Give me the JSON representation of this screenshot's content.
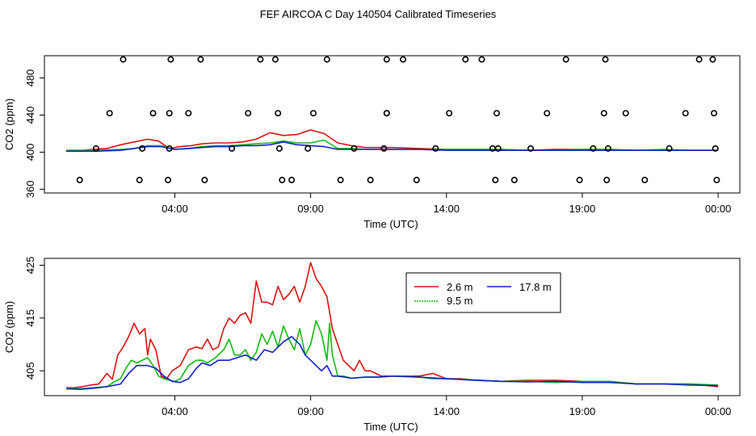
{
  "chart_data": {
    "title": "FEF AIRCOA C  Day 140504  Calibrated Timeseries",
    "colors": {
      "red": "#dd1111",
      "green": "#11bb11",
      "blue": "#1122cc",
      "qc": "#000000"
    },
    "panels": [
      {
        "type": "line",
        "name": "top",
        "xlabel": "Time (UTC)",
        "ylabel": "CO2 (ppm)",
        "xlim": [
          -0.8,
          24.8
        ],
        "ylim": [
          356,
          504
        ],
        "xticks": [
          4,
          9,
          14,
          19,
          24
        ],
        "xtick_labels": [
          "04:00",
          "09:00",
          "14:00",
          "19:00",
          "00:00"
        ],
        "yticks": [
          360,
          400,
          440,
          480
        ],
        "ytick_labels": [
          "360",
          "400",
          "440",
          "480"
        ],
        "series": [
          {
            "name": "2.6 m",
            "color": "red",
            "x": [
              0,
              0.6,
              1,
              1.5,
              2,
              2.5,
              3,
              3.4,
              3.8,
              4.2,
              4.6,
              5,
              5.5,
              6,
              6.5,
              7,
              7.5,
              8,
              8.5,
              9,
              9.5,
              10,
              10.5,
              11,
              11.5,
              12,
              13,
              14,
              15,
              16,
              17,
              18,
              19,
              20,
              21,
              22,
              23,
              24
            ],
            "y": [
              402,
              402,
              403,
              404,
              408,
              411,
              414,
              412,
              404,
              406,
              407,
              409,
              410,
              410,
              411,
              414,
              421,
              418,
              419,
              424,
              420,
              410,
              407,
              405,
              405,
              405,
              404,
              403,
              403,
              403,
              402,
              403,
              403,
              403,
              402,
              402,
              402,
              402
            ]
          },
          {
            "name": "9.5 m",
            "color": "green",
            "x": [
              0,
              1,
              2,
              2.5,
              3,
              3.5,
              4,
              4.5,
              5,
              5.5,
              6,
              6.5,
              7,
              7.5,
              8,
              8.5,
              9,
              9.5,
              10,
              10.5,
              11,
              12,
              13,
              14,
              15,
              16,
              17,
              18,
              19,
              20,
              21,
              22,
              23,
              24
            ],
            "y": [
              402,
              402,
              403,
              404,
              407,
              407,
              403,
              404,
              406,
              407,
              407,
              408,
              409,
              410,
              412,
              410,
              410,
              413,
              404,
              404,
              403,
              403,
              403,
              403,
              403,
              403,
              402,
              402,
              403,
              403,
              402,
              403,
              402,
              402
            ]
          },
          {
            "name": "17.8 m",
            "color": "blue",
            "x": [
              0,
              1,
              2,
              2.5,
              3,
              3.5,
              4,
              4.5,
              5,
              5.5,
              6,
              6.5,
              7,
              7.5,
              8,
              8.5,
              9,
              9.5,
              10,
              11,
              12,
              13,
              14,
              15,
              16,
              17,
              18,
              19,
              20,
              21,
              22,
              23,
              24
            ],
            "y": [
              401,
              401,
              402,
              404,
              406,
              406,
              403,
              404,
              405,
              406,
              406,
              407,
              407,
              408,
              411,
              408,
              407,
              406,
              403,
              403,
              403,
              403,
              402,
              402,
              402,
              402,
              402,
              402,
              402,
              402,
              402,
              402,
              402
            ]
          }
        ],
        "qc_points": {
          "x": [
            0.5,
            1.1,
            1.6,
            2.1,
            2.7,
            2.8,
            3.2,
            3.75,
            3.8,
            3.8,
            3.85,
            4.5,
            4.95,
            5.1,
            6.1,
            6.7,
            7.15,
            7.7,
            7.8,
            7.85,
            7.95,
            8.3,
            8.9,
            9.1,
            9.6,
            10.1,
            10.6,
            11.2,
            11.7,
            11.8,
            11.8,
            11.8,
            12.4,
            12.9,
            13.6,
            14.1,
            14.7,
            15.3,
            15.7,
            15.8,
            15.85,
            15.9,
            16.5,
            17.1,
            17.7,
            18.4,
            18.9,
            19.4,
            19.8,
            19.85,
            19.9,
            19.95,
            20.6,
            21.3,
            22.2,
            22.8,
            23.3,
            23.8,
            23.85,
            23.9,
            23.95
          ],
          "y": [
            370,
            404,
            442,
            500,
            370,
            404,
            442,
            370,
            404,
            442,
            500,
            442,
            500,
            370,
            404,
            442,
            500,
            500,
            442,
            404,
            370,
            370,
            404,
            442,
            500,
            370,
            404,
            370,
            404,
            442,
            500,
            442,
            500,
            370,
            404,
            442,
            500,
            500,
            404,
            370,
            442,
            404,
            370,
            404,
            442,
            500,
            370,
            404,
            442,
            500,
            370,
            404,
            442,
            370,
            404,
            442,
            500,
            500,
            442,
            404,
            370
          ]
        }
      },
      {
        "type": "line",
        "name": "bottom",
        "xlabel": "Time (UTC)",
        "ylabel": "CO2 (ppm)",
        "xlim": [
          -0.8,
          24.8
        ],
        "ylim": [
          400.3,
          426.3
        ],
        "xticks": [
          4,
          9,
          14,
          19,
          24
        ],
        "xtick_labels": [
          "04:00",
          "09:00",
          "14:00",
          "19:00",
          "00:00"
        ],
        "yticks": [
          405,
          415,
          425
        ],
        "ytick_labels": [
          "405",
          "415",
          "425"
        ],
        "legend": {
          "position": "top-center",
          "entries": [
            "2.6 m",
            "9.5 m",
            "17.8 m"
          ]
        },
        "series": [
          {
            "name": "2.6 m",
            "color": "red",
            "x": [
              0,
              0.3,
              0.6,
              0.9,
              1.2,
              1.5,
              1.7,
              1.9,
              2.1,
              2.3,
              2.5,
              2.7,
              2.9,
              3.0,
              3.1,
              3.3,
              3.5,
              3.7,
              3.9,
              4.2,
              4.5,
              4.8,
              5.0,
              5.2,
              5.4,
              5.6,
              5.8,
              6.0,
              6.2,
              6.4,
              6.6,
              6.8,
              7.0,
              7.2,
              7.4,
              7.6,
              7.8,
              8.0,
              8.2,
              8.4,
              8.6,
              8.8,
              9.0,
              9.2,
              9.4,
              9.6,
              9.8,
              10.0,
              10.2,
              10.4,
              10.6,
              10.8,
              11.0,
              11.2,
              11.4,
              11.6,
              12.0,
              12.5,
              13.0,
              13.5,
              14.0,
              14.5,
              15.0,
              16.0,
              17.0,
              18.0,
              19.0,
              20.0,
              21.0,
              22.0,
              23.0,
              24.0
            ],
            "y": [
              401.8,
              401.8,
              402.0,
              402.3,
              402.5,
              404.5,
              403.4,
              408.0,
              409.5,
              411.5,
              414.0,
              412.0,
              413.0,
              408.0,
              411.0,
              409.0,
              404.0,
              403.5,
              405.0,
              406.0,
              409.0,
              409.5,
              409.2,
              411.0,
              409.0,
              409.5,
              413.0,
              415.0,
              414.0,
              415.5,
              416.0,
              414.0,
              422.0,
              418.0,
              418.0,
              417.5,
              421.0,
              418.5,
              419.5,
              421.0,
              418.0,
              421.0,
              425.5,
              422.5,
              421.0,
              419.0,
              413.0,
              410.0,
              407.0,
              406.0,
              405.0,
              407.0,
              405.0,
              405.0,
              404.5,
              404.0,
              404.0,
              404.0,
              404.0,
              404.5,
              403.5,
              403.5,
              403.3,
              403.0,
              403.2,
              403.2,
              403.0,
              403.0,
              402.5,
              402.5,
              402.5,
              402.0
            ]
          },
          {
            "name": "9.5 m",
            "color": "green",
            "x": [
              0,
              0.5,
              1.0,
              1.5,
              1.8,
              2.0,
              2.2,
              2.4,
              2.6,
              2.8,
              3.0,
              3.2,
              3.4,
              3.6,
              3.8,
              4.0,
              4.2,
              4.5,
              4.8,
              5.0,
              5.2,
              5.5,
              5.8,
              6.0,
              6.2,
              6.4,
              6.6,
              6.8,
              7.0,
              7.2,
              7.4,
              7.6,
              7.8,
              8.0,
              8.2,
              8.4,
              8.6,
              8.8,
              9.0,
              9.2,
              9.4,
              9.6,
              9.7,
              9.8,
              10.0,
              10.2,
              10.5,
              11.0,
              11.5,
              12.0,
              12.5,
              13.0,
              13.5,
              14.0,
              15.0,
              16.0,
              17.0,
              18.0,
              19.0,
              20.0,
              21.0,
              22.0,
              23.0,
              24.0
            ],
            "y": [
              401.7,
              401.6,
              401.8,
              402.0,
              403.0,
              403.5,
              405.5,
              407.0,
              406.5,
              407.0,
              407.5,
              406.0,
              404.0,
              403.5,
              403.2,
              403.0,
              403.5,
              406.0,
              407.0,
              407.0,
              406.5,
              407.5,
              409.0,
              411.0,
              408.0,
              408.0,
              409.0,
              407.0,
              408.5,
              412.0,
              410.0,
              412.5,
              409.5,
              413.5,
              411.0,
              409.0,
              413.0,
              408.0,
              410.0,
              414.5,
              412.0,
              407.0,
              414.0,
              408.0,
              404.0,
              404.0,
              403.6,
              403.8,
              403.8,
              404.0,
              404.0,
              403.8,
              403.5,
              403.5,
              403.3,
              403.0,
              403.0,
              402.8,
              403.0,
              403.0,
              402.5,
              402.5,
              402.5,
              402.3
            ]
          },
          {
            "name": "17.8 m",
            "color": "blue",
            "x": [
              0,
              0.5,
              1.0,
              1.5,
              2.0,
              2.3,
              2.6,
              3.0,
              3.3,
              3.6,
              3.9,
              4.2,
              4.5,
              4.8,
              5.0,
              5.3,
              5.6,
              6.0,
              6.3,
              6.6,
              7.0,
              7.3,
              7.6,
              8.0,
              8.3,
              8.6,
              8.8,
              9.0,
              9.2,
              9.4,
              9.6,
              9.8,
              10.0,
              10.5,
              11.0,
              11.5,
              12.0,
              13.0,
              14.0,
              15.0,
              16.0,
              17.0,
              18.0,
              19.0,
              20.0,
              21.0,
              22.0,
              23.0,
              24.0
            ],
            "y": [
              401.6,
              401.5,
              401.7,
              402.0,
              402.5,
              404.5,
              406.0,
              406.0,
              405.5,
              404.0,
              403.0,
              402.8,
              403.5,
              405.5,
              406.5,
              406.0,
              407.0,
              407.0,
              407.5,
              408.0,
              407.0,
              409.0,
              408.5,
              410.5,
              411.5,
              410.0,
              408.0,
              407.0,
              406.0,
              405.0,
              406.0,
              404.0,
              404.0,
              403.6,
              403.8,
              403.8,
              404.0,
              403.8,
              403.5,
              403.2,
              403.0,
              402.9,
              403.0,
              402.8,
              402.8,
              402.5,
              402.5,
              402.3,
              402.2
            ]
          }
        ]
      }
    ]
  }
}
